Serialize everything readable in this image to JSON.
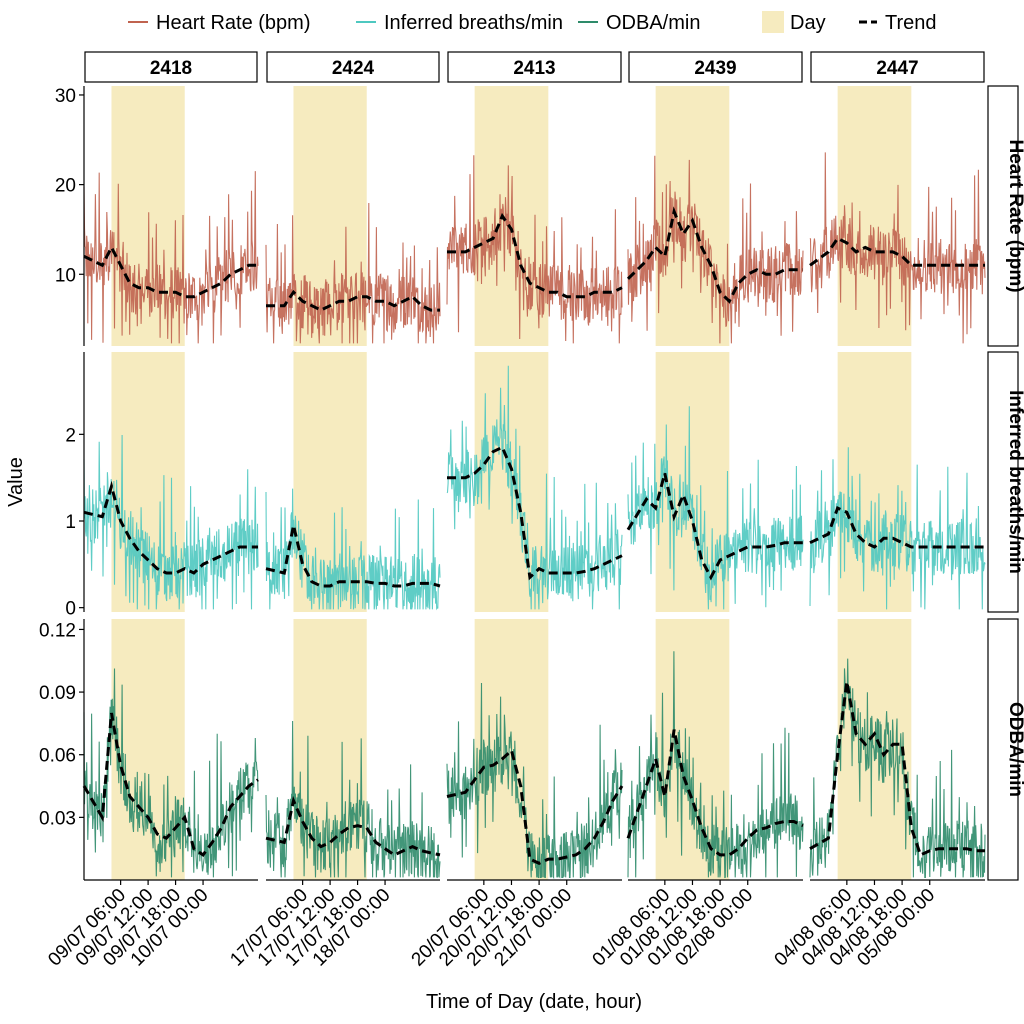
{
  "legend": {
    "items": [
      {
        "label": "Heart Rate (bpm)",
        "kind": "line",
        "color": "#c0634f"
      },
      {
        "label": "Inferred breaths/min",
        "kind": "line",
        "color": "#4ec8c0"
      },
      {
        "label": "ODBA/min",
        "kind": "line",
        "color": "#2e8b6a"
      },
      {
        "label": "Day",
        "kind": "fill",
        "color": "#f6ebbf"
      },
      {
        "label": "Trend",
        "kind": "dash",
        "color": "#000000"
      }
    ]
  },
  "axes": {
    "xlabel": "Time of Day (date, hour)",
    "ylabel": "Value"
  },
  "chart_data": {
    "type": "line",
    "facets": {
      "columns": [
        "2418",
        "2424",
        "2413",
        "2439",
        "2447"
      ],
      "rows": [
        "Heart Rate (bpm)",
        "Inferred breaths/min",
        "ODBA/min"
      ]
    },
    "x_range_hours": [
      -2,
      36
    ],
    "day_shading_hours": [
      4,
      20
    ],
    "x_tick_hours": [
      6,
      12,
      18,
      24
    ],
    "x_tick_labels": [
      [
        "09/07 06:00",
        "09/07 12:00",
        "09/07 18:00",
        "10/07 00:00"
      ],
      [
        "17/07 06:00",
        "17/07 12:00",
        "17/07 18:00",
        "18/07 00:00"
      ],
      [
        "20/07 06:00",
        "20/07 12:00",
        "20/07 18:00",
        "21/07 00:00"
      ],
      [
        "01/08 06:00",
        "01/08 12:00",
        "01/08 18:00",
        "02/08 00:00"
      ],
      [
        "04/08 06:00",
        "04/08 12:00",
        "04/08 18:00",
        "05/08 00:00"
      ]
    ],
    "y_axes": [
      {
        "ylim": [
          2,
          31
        ],
        "ticks": [
          10,
          20,
          30
        ],
        "tick_labels": [
          "10",
          "20",
          "30"
        ]
      },
      {
        "ylim": [
          -0.05,
          2.95
        ],
        "ticks": [
          0,
          1,
          2
        ],
        "tick_labels": [
          "0",
          "1",
          "2"
        ]
      },
      {
        "ylim": [
          0,
          0.125
        ],
        "ticks": [
          0.03,
          0.06,
          0.09,
          0.12
        ],
        "tick_labels": [
          "0.03",
          "0.06",
          "0.09",
          "0.12"
        ]
      }
    ],
    "trend_x_hours": [
      -2,
      2,
      4,
      6,
      8,
      10,
      12,
      14,
      16,
      18,
      20,
      22,
      24,
      26,
      28,
      30,
      32,
      34,
      36
    ],
    "trend": [
      [
        [
          12,
          11,
          13,
          11,
          9,
          8.5,
          8.5,
          8,
          8,
          8,
          7.5,
          7.5,
          8,
          8.5,
          9,
          10,
          10.5,
          11,
          11
        ],
        [
          1.1,
          1.05,
          1.4,
          1.0,
          0.8,
          0.65,
          0.55,
          0.45,
          0.4,
          0.4,
          0.45,
          0.4,
          0.5,
          0.55,
          0.6,
          0.65,
          0.7,
          0.7,
          0.7
        ],
        [
          0.045,
          0.03,
          0.08,
          0.055,
          0.04,
          0.035,
          0.03,
          0.022,
          0.02,
          0.025,
          0.03,
          0.015,
          0.012,
          0.018,
          0.025,
          0.035,
          0.04,
          0.045,
          0.048
        ]
      ],
      [
        [
          6.5,
          6.5,
          8,
          7,
          6.5,
          6,
          6.5,
          7,
          7,
          7.5,
          7.5,
          7,
          7,
          6.5,
          7,
          7.5,
          6.5,
          6,
          6
        ],
        [
          0.45,
          0.4,
          0.95,
          0.5,
          0.3,
          0.25,
          0.25,
          0.3,
          0.3,
          0.3,
          0.3,
          0.28,
          0.28,
          0.25,
          0.25,
          0.28,
          0.28,
          0.28,
          0.25
        ],
        [
          0.02,
          0.018,
          0.038,
          0.028,
          0.02,
          0.016,
          0.018,
          0.022,
          0.025,
          0.026,
          0.025,
          0.018,
          0.015,
          0.012,
          0.014,
          0.016,
          0.014,
          0.013,
          0.012
        ]
      ],
      [
        [
          12.5,
          12.5,
          13,
          13.5,
          14,
          16.5,
          15,
          11,
          9,
          8.5,
          8,
          8,
          7.5,
          7.5,
          7.5,
          8,
          8,
          8,
          8.5
        ],
        [
          1.5,
          1.5,
          1.55,
          1.65,
          1.8,
          1.85,
          1.6,
          1.1,
          0.35,
          0.45,
          0.4,
          0.4,
          0.4,
          0.4,
          0.42,
          0.45,
          0.5,
          0.55,
          0.6
        ],
        [
          0.04,
          0.042,
          0.048,
          0.054,
          0.055,
          0.058,
          0.062,
          0.045,
          0.01,
          0.008,
          0.01,
          0.01,
          0.011,
          0.012,
          0.015,
          0.02,
          0.028,
          0.038,
          0.045
        ]
      ],
      [
        [
          9.5,
          11.5,
          13,
          12,
          17,
          14.5,
          16,
          13,
          11,
          8,
          7,
          9,
          10,
          10.5,
          10,
          10,
          10.5,
          10.5,
          10.5
        ],
        [
          0.9,
          1.25,
          1.15,
          1.55,
          1.05,
          1.3,
          1.0,
          0.55,
          0.35,
          0.55,
          0.6,
          0.65,
          0.7,
          0.7,
          0.7,
          0.72,
          0.75,
          0.75,
          0.75
        ],
        [
          0.02,
          0.045,
          0.058,
          0.04,
          0.072,
          0.05,
          0.038,
          0.025,
          0.015,
          0.012,
          0.012,
          0.015,
          0.02,
          0.024,
          0.025,
          0.027,
          0.028,
          0.028,
          0.026
        ]
      ],
      [
        [
          11,
          12.5,
          14,
          13.5,
          12.5,
          13,
          12.5,
          12.5,
          12.5,
          12,
          11,
          11,
          11,
          11,
          11,
          11,
          11,
          11,
          11
        ],
        [
          0.75,
          0.85,
          1.15,
          1.1,
          0.85,
          0.75,
          0.7,
          0.8,
          0.8,
          0.75,
          0.7,
          0.7,
          0.7,
          0.7,
          0.7,
          0.7,
          0.7,
          0.7,
          0.7
        ],
        [
          0.015,
          0.02,
          0.06,
          0.095,
          0.07,
          0.065,
          0.07,
          0.06,
          0.065,
          0.065,
          0.025,
          0.012,
          0.014,
          0.015,
          0.015,
          0.015,
          0.015,
          0.014,
          0.014
        ]
      ]
    ]
  }
}
